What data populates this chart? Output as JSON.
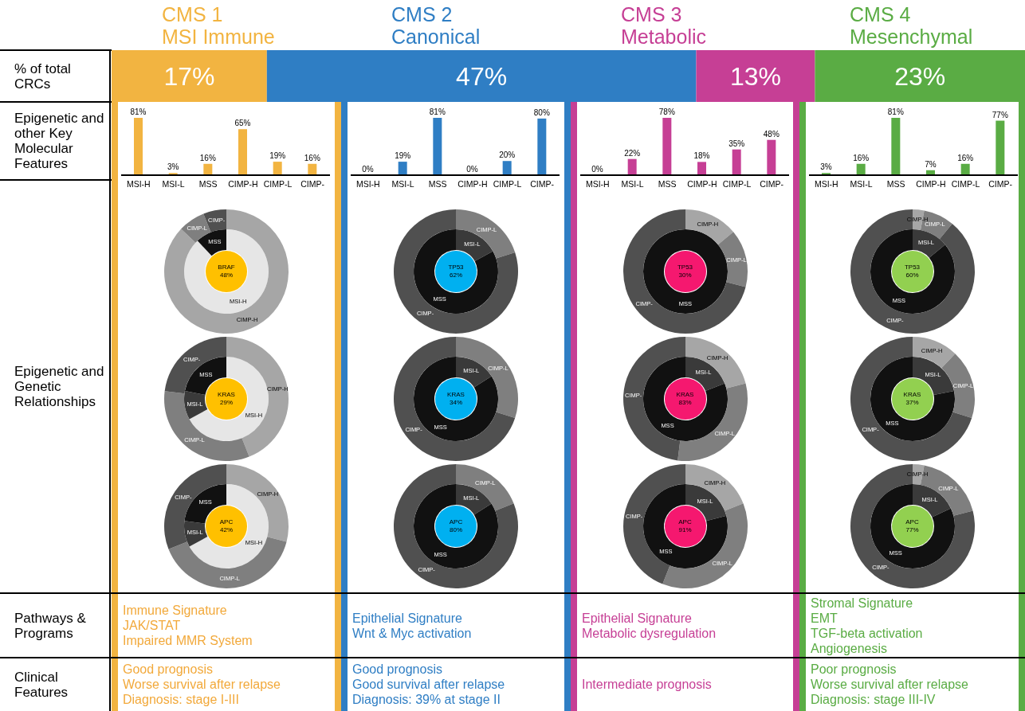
{
  "chart_data": [
    {
      "type": "other",
      "annotations": [
        "% of total CRCs",
        "Epigenetic and other Key Molecular Features",
        "Epigenetic and Genetic Relationships",
        "Pathways & Programs",
        "Clinical Features"
      ]
    },
    {
      "type": "bar",
      "orientation": "horizontal",
      "stacked": true,
      "legend": "top",
      "categories": [
        null
      ],
      "series": [
        {
          "name": "CMS 1\nMSI Immune",
          "color": "#f2b441",
          "values": [
            17
          ],
          "value_labels": [
            "17%"
          ]
        },
        {
          "name": "CMS 2\nCanonical",
          "color": "#2f7ec4",
          "values": [
            47
          ],
          "value_labels": [
            "47%"
          ]
        },
        {
          "name": "CMS 3\nMetabolic",
          "color": "#c63f95",
          "values": [
            13
          ],
          "value_labels": [
            "13%"
          ]
        },
        {
          "name": "CMS 4\nMesenchymal",
          "color": "#5aac44",
          "values": [
            23
          ],
          "value_labels": [
            "23%"
          ]
        }
      ]
    },
    {
      "type": "bar",
      "color": "#f2b441",
      "categories": [
        "MSI-H",
        "MSI-L",
        "MSS",
        "CIMP-H",
        "CIMP-L",
        "CIMP-"
      ],
      "values": [
        81,
        3,
        16,
        65,
        19,
        16
      ],
      "value_labels": [
        "81%",
        "3%",
        "16%",
        "65%",
        "19%",
        "16%"
      ]
    },
    {
      "type": "bar",
      "color": "#2f7ec4",
      "categories": [
        "MSI-H",
        "MSI-L",
        "MSS",
        "CIMP-H",
        "CIMP-L",
        "CIMP-"
      ],
      "values": [
        0,
        19,
        81,
        0,
        20,
        80
      ],
      "value_labels": [
        "0%",
        "19%",
        "81%",
        "0%",
        "20%",
        "80%"
      ]
    },
    {
      "type": "bar",
      "color": "#c63f95",
      "categories": [
        "MSI-H",
        "MSI-L",
        "MSS",
        "CIMP-H",
        "CIMP-L",
        "CIMP-"
      ],
      "values": [
        0,
        22,
        78,
        18,
        35,
        48
      ],
      "value_labels": [
        "0%",
        "22%",
        "78%",
        "18%",
        "35%",
        "48%"
      ]
    },
    {
      "type": "bar",
      "color": "#5aac44",
      "categories": [
        "MSI-H",
        "MSI-L",
        "MSS",
        "CIMP-H",
        "CIMP-L",
        "CIMP-"
      ],
      "values": [
        3,
        16,
        81,
        7,
        16,
        77
      ],
      "value_labels": [
        "3%",
        "16%",
        "81%",
        "7%",
        "16%",
        "77%"
      ]
    },
    {
      "type": "donut",
      "title": "BRAF",
      "subtitle": "48%",
      "color": "#ffc000",
      "categories": [
        "MSI-H",
        "MSS"
      ],
      "values": [
        88,
        12
      ],
      "colors": [
        "#e6e6e6",
        "#111111"
      ]
    },
    {
      "type": "donut",
      "categories": [
        "CIMP-H",
        "CIMP-L",
        "CIMP-"
      ],
      "values": [
        87,
        7,
        6
      ],
      "colors": [
        "#a6a6a6",
        "#7f7f7f",
        "#505050"
      ]
    },
    {
      "type": "donut",
      "title": "TP53",
      "subtitle": "62%",
      "color": "#00b0f0",
      "categories": [
        "MSI-L",
        "MSS"
      ],
      "values": [
        17,
        83
      ],
      "colors": [
        "#3a3a3a",
        "#111111"
      ]
    },
    {
      "type": "donut",
      "categories": [
        "CIMP-L",
        "CIMP-"
      ],
      "values": [
        20,
        80
      ],
      "colors": [
        "#7f7f7f",
        "#505050"
      ]
    },
    {
      "type": "donut",
      "title": "TP53",
      "subtitle": "30%",
      "color": "#f5186f",
      "categories": [
        "MSS"
      ],
      "values": [
        100
      ],
      "colors": [
        "#111111"
      ]
    },
    {
      "type": "donut",
      "categories": [
        "CIMP-H",
        "CIMP-L",
        "CIMP-"
      ],
      "values": [
        14,
        15,
        71
      ],
      "colors": [
        "#a6a6a6",
        "#7f7f7f",
        "#505050"
      ]
    },
    {
      "type": "donut",
      "title": "TP53",
      "subtitle": "60%",
      "color": "#92d050",
      "categories": [
        "MSI-L",
        "MSS"
      ],
      "values": [
        14,
        86
      ],
      "colors": [
        "#3a3a3a",
        "#111111"
      ]
    },
    {
      "type": "donut",
      "categories": [
        "CIMP-H",
        "CIMP-L",
        "CIMP-"
      ],
      "values": [
        3,
        8,
        89
      ],
      "colors": [
        "#a6a6a6",
        "#7f7f7f",
        "#505050"
      ]
    },
    {
      "type": "donut",
      "title": "KRAS",
      "subtitle": "29%",
      "color": "#ffc000",
      "categories": [
        "MSI-H",
        "MSI-L",
        "MSS"
      ],
      "values": [
        67,
        11,
        22
      ],
      "colors": [
        "#e6e6e6",
        "#3a3a3a",
        "#111111"
      ]
    },
    {
      "type": "donut",
      "categories": [
        "CIMP-H",
        "CIMP-L",
        "CIMP-"
      ],
      "values": [
        44,
        33,
        23
      ],
      "colors": [
        "#a6a6a6",
        "#7f7f7f",
        "#505050"
      ]
    },
    {
      "type": "donut",
      "title": "KRAS",
      "subtitle": "34%",
      "color": "#00b0f0",
      "categories": [
        "MSI-L",
        "MSS"
      ],
      "values": [
        16,
        84
      ],
      "colors": [
        "#3a3a3a",
        "#111111"
      ]
    },
    {
      "type": "donut",
      "categories": [
        "CIMP-L",
        "CIMP-"
      ],
      "values": [
        30,
        70
      ],
      "colors": [
        "#7f7f7f",
        "#505050"
      ]
    },
    {
      "type": "donut",
      "title": "KRAS",
      "subtitle": "83%",
      "color": "#f5186f",
      "categories": [
        "MSI-L",
        "MSS"
      ],
      "values": [
        19,
        81
      ],
      "colors": [
        "#3a3a3a",
        "#111111"
      ]
    },
    {
      "type": "donut",
      "categories": [
        "CIMP-H",
        "CIMP-L",
        "CIMP-"
      ],
      "values": [
        21,
        31,
        48
      ],
      "colors": [
        "#a6a6a6",
        "#7f7f7f",
        "#505050"
      ]
    },
    {
      "type": "donut",
      "title": "KRAS",
      "subtitle": "37%",
      "color": "#92d050",
      "categories": [
        "MSI-L",
        "MSS"
      ],
      "values": [
        22,
        78
      ],
      "colors": [
        "#3a3a3a",
        "#111111"
      ]
    },
    {
      "type": "donut",
      "categories": [
        "CIMP-H",
        "CIMP-L",
        "CIMP-"
      ],
      "values": [
        12,
        18,
        70
      ],
      "colors": [
        "#a6a6a6",
        "#7f7f7f",
        "#505050"
      ]
    },
    {
      "type": "donut",
      "title": "APC",
      "subtitle": "42%",
      "color": "#ffc000",
      "categories": [
        "MSI-H",
        "MSI-L",
        "MSS"
      ],
      "values": [
        67,
        10,
        23
      ],
      "colors": [
        "#e6e6e6",
        "#3a3a3a",
        "#111111"
      ]
    },
    {
      "type": "donut",
      "categories": [
        "CIMP-H",
        "CIMP-L",
        "CIMP-"
      ],
      "values": [
        29,
        40,
        31
      ],
      "colors": [
        "#a6a6a6",
        "#7f7f7f",
        "#505050"
      ]
    },
    {
      "type": "donut",
      "title": "APC",
      "subtitle": "80%",
      "color": "#00b0f0",
      "categories": [
        "MSI-L",
        "MSS"
      ],
      "values": [
        16,
        84
      ],
      "colors": [
        "#3a3a3a",
        "#111111"
      ]
    },
    {
      "type": "donut",
      "categories": [
        "CIMP-L",
        "CIMP-"
      ],
      "values": [
        19,
        81
      ],
      "colors": [
        "#7f7f7f",
        "#505050"
      ]
    },
    {
      "type": "donut",
      "title": "APC",
      "subtitle": "91%",
      "color": "#f5186f",
      "categories": [
        "MSI-L",
        "MSS"
      ],
      "values": [
        21,
        79
      ],
      "colors": [
        "#3a3a3a",
        "#111111"
      ]
    },
    {
      "type": "donut",
      "categories": [
        "CIMP-H",
        "CIMP-L",
        "CIMP-"
      ],
      "values": [
        19,
        37,
        44
      ],
      "colors": [
        "#a6a6a6",
        "#7f7f7f",
        "#505050"
      ]
    },
    {
      "type": "donut",
      "title": "APC",
      "subtitle": "77%",
      "color": "#92d050",
      "categories": [
        "MSI-L",
        "MSS"
      ],
      "values": [
        18,
        82
      ],
      "colors": [
        "#3a3a3a",
        "#111111"
      ]
    },
    {
      "type": "donut",
      "categories": [
        "CIMP-H",
        "CIMP-L",
        "CIMP-"
      ],
      "values": [
        3,
        18,
        79
      ],
      "colors": [
        "#a6a6a6",
        "#7f7f7f",
        "#505050"
      ]
    },
    {
      "type": "other",
      "color": "#f2a93b",
      "annotations": [
        "Immune Signature",
        "JAK/STAT",
        "Impaired MMR System"
      ]
    },
    {
      "type": "other",
      "color": "#2f7ec4",
      "annotations": [
        "Epithelial Signature",
        "Wnt & Myc activation"
      ]
    },
    {
      "type": "other",
      "color": "#c63f95",
      "annotations": [
        "Epithelial Signature",
        "Metabolic dysregulation"
      ]
    },
    {
      "type": "other",
      "color": "#5aac44",
      "annotations": [
        "Stromal Signature",
        "EMT",
        "TGF-beta activation",
        "Angiogenesis"
      ]
    },
    {
      "type": "other",
      "color": "#f2a93b",
      "annotations": [
        "Good prognosis",
        "Worse survival after relapse",
        "Diagnosis: stage I-III"
      ]
    },
    {
      "type": "other",
      "color": "#2f7ec4",
      "annotations": [
        "Good prognosis",
        "Good survival after relapse",
        "Diagnosis: 39% at stage II"
      ]
    },
    {
      "type": "other",
      "color": "#c63f95",
      "annotations": [
        "Intermediate prognosis"
      ]
    },
    {
      "type": "other",
      "color": "#5aac44",
      "annotations": [
        "Poor prognosis",
        "Worse survival after relapse",
        "Diagnosis: stage III-IV"
      ]
    }
  ]
}
